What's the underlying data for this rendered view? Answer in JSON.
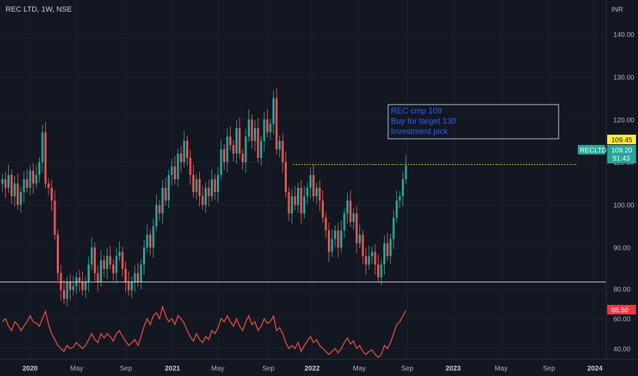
{
  "header": {
    "title": "REC LTD, 1W, NSE",
    "currency": "INR"
  },
  "annotation": {
    "lines": [
      "REC cmp 109",
      "Buy for target 130",
      "Investment pick"
    ]
  },
  "price_tags": {
    "horizontal_line_value": 109.45,
    "horizontal_line_label": "109.45",
    "symbol_label": "RECLTD",
    "last_price_label": "109.20",
    "countdown_label": "51:43",
    "rsi_value_label": "65.50"
  },
  "colors": {
    "background": "#131722",
    "up": "#26a69a",
    "down": "#ef5350",
    "rsi_line": "#f0513c",
    "annotation_text": "#2962ff",
    "highlight_line": "#ffeb3b",
    "divider": "#e0e3eb"
  },
  "chart_data": [
    {
      "type": "candlestick",
      "title": "REC LTD, 1W, NSE",
      "ylabel": "INR",
      "ylim": [
        82,
        148
      ],
      "y_ticks": [
        80,
        90,
        100,
        110,
        120,
        130,
        140
      ],
      "y_tick_labels": [
        "80.00",
        "90.00",
        "100.00",
        "110.00",
        "120.00",
        "130.00",
        "140.00"
      ],
      "x_tick_labels": [
        "2020",
        "May",
        "Sep",
        "2021",
        "May",
        "Sep",
        "2022",
        "May",
        "Sep",
        "2023",
        "May",
        "Sep",
        "2024"
      ],
      "x_tick_emphasis": [
        true,
        false,
        false,
        true,
        false,
        false,
        true,
        false,
        false,
        true,
        false,
        false,
        true
      ],
      "price_series": [
        106,
        104,
        107,
        102,
        105,
        100,
        103,
        106,
        104,
        108,
        105,
        107,
        110,
        117,
        105,
        104,
        101,
        93,
        84,
        80,
        78,
        82,
        80,
        81,
        83,
        82,
        80,
        82,
        86,
        90,
        84,
        82,
        87,
        85,
        88,
        86,
        84,
        88,
        89,
        85,
        82,
        80,
        82,
        84,
        82,
        86,
        90,
        93,
        90,
        95,
        100,
        98,
        104,
        101,
        107,
        109,
        106,
        112,
        110,
        115,
        111,
        107,
        103,
        106,
        102,
        100,
        104,
        102,
        106,
        103,
        107,
        113,
        110,
        116,
        114,
        112,
        118,
        112,
        110,
        116,
        120,
        115,
        118,
        111,
        115,
        120,
        117,
        119,
        125,
        113,
        115,
        110,
        103,
        98,
        102,
        100,
        104,
        98,
        102,
        104,
        107,
        102,
        104,
        101,
        97,
        94,
        89,
        92,
        94,
        90,
        94,
        98,
        101,
        96,
        98,
        91,
        93,
        88,
        86,
        88,
        89,
        86,
        83,
        86,
        91,
        88,
        92,
        97,
        101,
        102,
        106,
        109.2
      ],
      "horizontal_line": 109.45,
      "last_price": 109.2
    },
    {
      "type": "line",
      "title": "",
      "ylim": [
        33,
        84
      ],
      "y_ticks": [
        40,
        60,
        80
      ],
      "y_tick_labels": [
        "40.00",
        "60.00",
        "80.00"
      ],
      "series": [
        {
          "values": [
            58,
            60,
            55,
            52,
            58,
            56,
            52,
            55,
            58,
            62,
            58,
            57,
            55,
            60,
            65,
            56,
            50,
            46,
            42,
            40,
            38,
            42,
            40,
            41,
            44,
            42,
            40,
            42,
            46,
            50,
            46,
            44,
            50,
            47,
            50,
            48,
            45,
            50,
            52,
            48,
            45,
            42,
            44,
            46,
            42,
            48,
            55,
            60,
            56,
            62,
            64,
            60,
            68,
            62,
            58,
            60,
            56,
            62,
            60,
            57,
            52,
            48,
            45,
            50,
            46,
            44,
            48,
            46,
            52,
            50,
            54,
            60,
            58,
            62,
            58,
            55,
            60,
            55,
            52,
            58,
            62,
            56,
            58,
            52,
            55,
            60,
            57,
            58,
            62,
            52,
            54,
            50,
            44,
            40,
            42,
            40,
            44,
            38,
            42,
            45,
            48,
            44,
            46,
            42,
            40,
            38,
            36,
            38,
            40,
            37,
            40,
            44,
            47,
            43,
            45,
            40,
            42,
            38,
            36,
            38,
            39,
            36,
            34,
            36,
            42,
            40,
            44,
            50,
            56,
            58,
            62,
            65.5
          ]
        }
      ],
      "last_value": 65.5
    }
  ]
}
